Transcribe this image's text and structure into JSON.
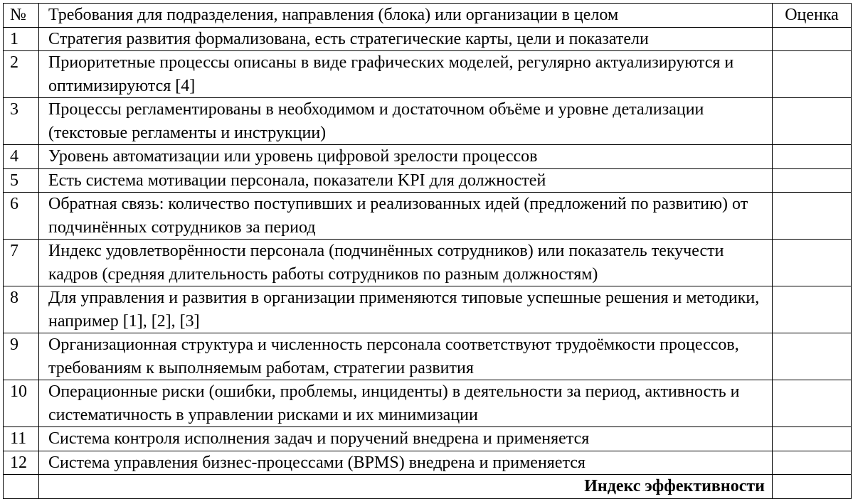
{
  "table": {
    "headers": {
      "num": "№",
      "requirement": "Требования для подразделения, направления (блока) или организации в целом",
      "score": "Оценка"
    },
    "rows": [
      {
        "num": "1",
        "text": "Стратегия развития формализована, есть стратегические карты, цели и показатели",
        "score": ""
      },
      {
        "num": "2",
        "text": "Приоритетные процессы описаны в виде графических моделей, регулярно актуализируются и оптимизируются [4]",
        "score": ""
      },
      {
        "num": "3",
        "text": "Процессы регламентированы в необходимом и достаточном объёме и уровне детализации (текстовые регламенты и инструкции)",
        "score": ""
      },
      {
        "num": "4",
        "text": "Уровень автоматизации или уровень цифровой зрелости процессов",
        "score": ""
      },
      {
        "num": "5",
        "text": "Есть система мотивации персонала, показатели KPI для должностей",
        "score": ""
      },
      {
        "num": "6",
        "text": "Обратная связь: количество поступивших и реализованных идей (предложений по развитию) от подчинённых сотрудников за период",
        "score": ""
      },
      {
        "num": "7",
        "text": "Индекс удовлетворённости персонала (подчинённых сотрудников) или показатель текучести кадров (средняя длительность работы сотрудников по разным должностям)",
        "score": ""
      },
      {
        "num": "8",
        "text": "Для управления и развития в организации применяются типовые успешные решения и методики, например [1], [2], [3]",
        "score": ""
      },
      {
        "num": "9",
        "text": "Организационная структура и численность персонала соответствуют трудоёмкости процессов, требованиям к выполняемым работам, стратегии развития",
        "score": ""
      },
      {
        "num": "10",
        "text": "Операционные риски (ошибки, проблемы, инциденты) в деятельности за период, активность и систематичность в управлении рисками и их минимизации",
        "score": ""
      },
      {
        "num": "11",
        "text": "Система контроля исполнения задач и поручений внедрена и применяется",
        "score": ""
      },
      {
        "num": "12",
        "text": "Система управления бизнес-процессами (BPMS) внедрена и применяется",
        "score": ""
      }
    ],
    "total_label": "Индекс эффективности",
    "total_score": ""
  }
}
